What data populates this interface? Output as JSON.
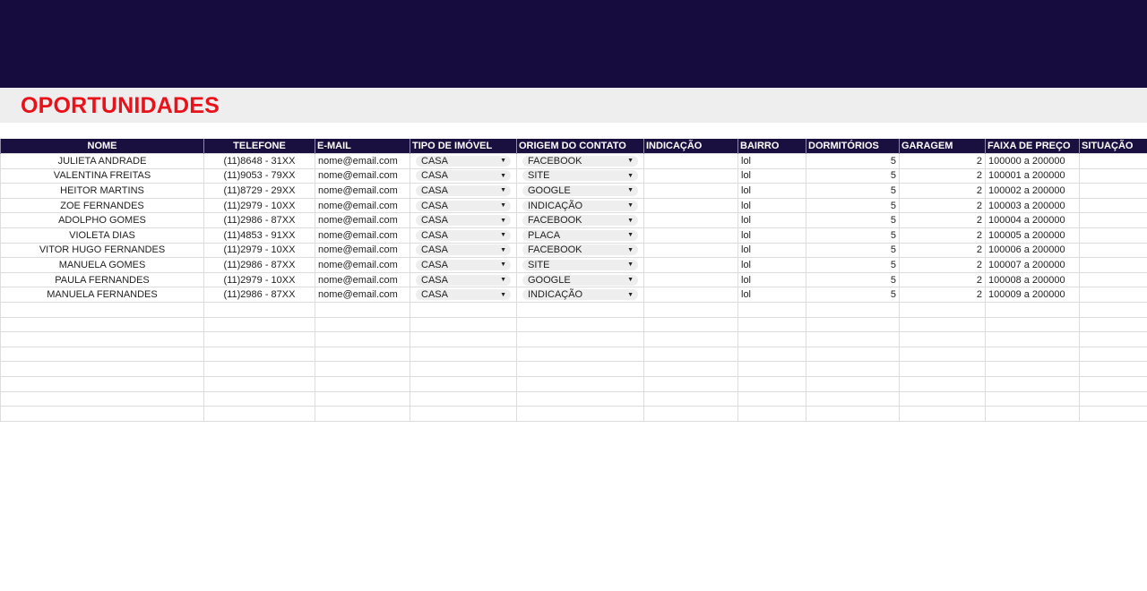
{
  "page": {
    "title": "OPORTUNIDADES"
  },
  "colors": {
    "banner": "#170c3e",
    "header": "#1a1040",
    "title": "#e8121a"
  },
  "table": {
    "headers": [
      "NOME",
      "TELEFONE",
      "E-MAIL",
      "TIPO DE IMÓVEL",
      "ORIGEM DO CONTATO",
      "INDICAÇÃO",
      "BAIRRO",
      "DORMITÓRIOS",
      "GARAGEM",
      "FAIXA DE PREÇO",
      "SITUAÇÃO"
    ],
    "rows": [
      {
        "nome": "JULIETA ANDRADE",
        "telefone": "(11)8648 - 31XX",
        "email": "nome@email.com",
        "tipo": "CASA",
        "origem": "FACEBOOK",
        "indicacao": "",
        "bairro": "lol",
        "dormitorios": "5",
        "garagem": "2",
        "faixa": "100000 a 200000",
        "situacao": ""
      },
      {
        "nome": "VALENTINA FREITAS",
        "telefone": "(11)9053 - 79XX",
        "email": "nome@email.com",
        "tipo": "CASA",
        "origem": "SITE",
        "indicacao": "",
        "bairro": "lol",
        "dormitorios": "5",
        "garagem": "2",
        "faixa": "100001 a 200000",
        "situacao": ""
      },
      {
        "nome": "HEITOR MARTINS",
        "telefone": "(11)8729 - 29XX",
        "email": "nome@email.com",
        "tipo": "CASA",
        "origem": "GOOGLE",
        "indicacao": "",
        "bairro": "lol",
        "dormitorios": "5",
        "garagem": "2",
        "faixa": "100002 a 200000",
        "situacao": ""
      },
      {
        "nome": "ZOE FERNANDES",
        "telefone": "(11)2979 - 10XX",
        "email": "nome@email.com",
        "tipo": "CASA",
        "origem": "INDICAÇÃO",
        "indicacao": "",
        "bairro": "lol",
        "dormitorios": "5",
        "garagem": "2",
        "faixa": "100003 a 200000",
        "situacao": ""
      },
      {
        "nome": "ADOLPHO GOMES",
        "telefone": "(11)2986 - 87XX",
        "email": "nome@email.com",
        "tipo": "CASA",
        "origem": "FACEBOOK",
        "indicacao": "",
        "bairro": "lol",
        "dormitorios": "5",
        "garagem": "2",
        "faixa": "100004 a 200000",
        "situacao": ""
      },
      {
        "nome": "VIOLETA DIAS",
        "telefone": "(11)4853 - 91XX",
        "email": "nome@email.com",
        "tipo": "CASA",
        "origem": "PLACA",
        "indicacao": "",
        "bairro": "lol",
        "dormitorios": "5",
        "garagem": "2",
        "faixa": "100005 a 200000",
        "situacao": ""
      },
      {
        "nome": "VITOR HUGO FERNANDES",
        "telefone": "(11)2979 - 10XX",
        "email": "nome@email.com",
        "tipo": "CASA",
        "origem": "FACEBOOK",
        "indicacao": "",
        "bairro": "lol",
        "dormitorios": "5",
        "garagem": "2",
        "faixa": "100006 a 200000",
        "situacao": ""
      },
      {
        "nome": "MANUELA GOMES",
        "telefone": "(11)2986 - 87XX",
        "email": "nome@email.com",
        "tipo": "CASA",
        "origem": "SITE",
        "indicacao": "",
        "bairro": "lol",
        "dormitorios": "5",
        "garagem": "2",
        "faixa": "100007 a 200000",
        "situacao": ""
      },
      {
        "nome": "PAULA FERNANDES",
        "telefone": "(11)2979 - 10XX",
        "email": "nome@email.com",
        "tipo": "CASA",
        "origem": "GOOGLE",
        "indicacao": "",
        "bairro": "lol",
        "dormitorios": "5",
        "garagem": "2",
        "faixa": "100008 a 200000",
        "situacao": ""
      },
      {
        "nome": "MANUELA FERNANDES",
        "telefone": "(11)2986 - 87XX",
        "email": "nome@email.com",
        "tipo": "CASA",
        "origem": "INDICAÇÃO",
        "indicacao": "",
        "bairro": "lol",
        "dormitorios": "5",
        "garagem": "2",
        "faixa": "100009 a 200000",
        "situacao": ""
      }
    ]
  }
}
